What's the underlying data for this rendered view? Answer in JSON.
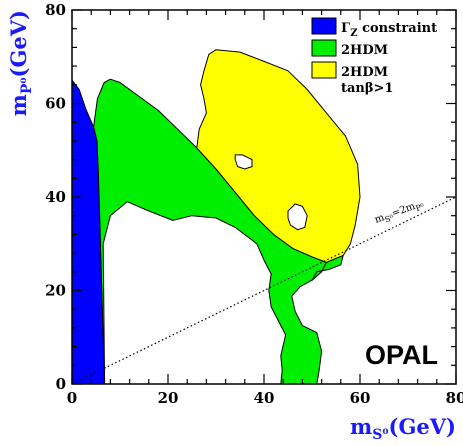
{
  "chart_data": {
    "type": "area",
    "title": "",
    "xlabel": "m",
    "xlabel_sub": "S⁰",
    "xlabel_unit": "(GeV)",
    "ylabel": "m",
    "ylabel_sub": "P⁰",
    "ylabel_unit": "(GeV)",
    "xlim": [
      0,
      80
    ],
    "ylim": [
      0,
      80
    ],
    "xticks": [
      0,
      20,
      40,
      60,
      80
    ],
    "yticks": [
      0,
      20,
      40,
      60,
      80
    ],
    "grid": false,
    "legend_position": "top-right",
    "series": [
      {
        "name": "ΓZ constraint",
        "name_main": "Γ",
        "name_sub": "Z",
        "name_rest": " constraint",
        "color": "#0000ff",
        "points": [
          [
            0,
            65
          ],
          [
            1.5,
            63
          ],
          [
            3,
            58.5
          ],
          [
            4.5,
            55
          ],
          [
            5.2,
            52
          ],
          [
            5.5,
            45
          ],
          [
            5.8,
            35
          ],
          [
            6.2,
            20
          ],
          [
            6.8,
            0
          ],
          [
            0,
            0
          ]
        ]
      },
      {
        "name": "2HDM",
        "color": "#00ee00",
        "points": [
          [
            4.5,
            55
          ],
          [
            5.3,
            61
          ],
          [
            6.7,
            64.5
          ],
          [
            8,
            65.2
          ],
          [
            10,
            64.5
          ],
          [
            14,
            61.5
          ],
          [
            18,
            58.5
          ],
          [
            22,
            54.5
          ],
          [
            26,
            50.5
          ],
          [
            30,
            46
          ],
          [
            34,
            41
          ],
          [
            38,
            36
          ],
          [
            42,
            32
          ],
          [
            46,
            29
          ],
          [
            50,
            27.2
          ],
          [
            53,
            26
          ],
          [
            52,
            24
          ],
          [
            50,
            22.2
          ],
          [
            47.5,
            20.8
          ],
          [
            45.8,
            18.8
          ],
          [
            46.5,
            15.5
          ],
          [
            48,
            12.5
          ],
          [
            51,
            11
          ],
          [
            52,
            7
          ],
          [
            51.5,
            3
          ],
          [
            51,
            0
          ],
          [
            43.5,
            0
          ],
          [
            43.8,
            3
          ],
          [
            43.5,
            6
          ],
          [
            44.5,
            10.5
          ],
          [
            43,
            13.5
          ],
          [
            41.5,
            16.5
          ],
          [
            41,
            20
          ],
          [
            41.5,
            23.5
          ],
          [
            40,
            26.5
          ],
          [
            38.5,
            30
          ],
          [
            34,
            33.5
          ],
          [
            30,
            35.5
          ],
          [
            25,
            36
          ],
          [
            21,
            35
          ],
          [
            16,
            37
          ],
          [
            11.5,
            39
          ],
          [
            8,
            36
          ],
          [
            6.5,
            30
          ],
          [
            6.8,
            0
          ],
          [
            6.2,
            20
          ],
          [
            5.8,
            35
          ],
          [
            5.5,
            45
          ],
          [
            5.2,
            52
          ]
        ]
      },
      {
        "name": "2HDM",
        "name_line2": "tanβ>1",
        "color": "#ffff00",
        "points": [
          [
            26,
            50.5
          ],
          [
            26.5,
            54.5
          ],
          [
            28,
            58
          ],
          [
            27.5,
            61
          ],
          [
            26.8,
            64
          ],
          [
            27.5,
            67
          ],
          [
            28.5,
            70.5
          ],
          [
            30,
            71.5
          ],
          [
            35,
            71
          ],
          [
            40,
            69
          ],
          [
            45,
            67
          ],
          [
            49,
            63
          ],
          [
            53,
            58
          ],
          [
            57,
            53
          ],
          [
            59.5,
            47
          ],
          [
            60,
            40
          ],
          [
            59,
            34
          ],
          [
            58,
            30
          ],
          [
            56.5,
            27.5
          ],
          [
            53,
            26
          ],
          [
            50,
            27.2
          ],
          [
            46,
            29
          ],
          [
            42,
            32
          ],
          [
            38,
            36
          ],
          [
            34,
            41
          ],
          [
            30,
            46
          ]
        ]
      },
      {
        "name": "2HDM",
        "color": "#00ee00",
        "points": [
          [
            53,
            26
          ],
          [
            56.5,
            27.5
          ],
          [
            56,
            25.5
          ],
          [
            53.5,
            24.5
          ],
          [
            51,
            24
          ],
          [
            50,
            22.2
          ],
          [
            52,
            24
          ]
        ]
      }
    ],
    "holes": [
      {
        "points": [
          [
            34,
            49
          ],
          [
            35.5,
            49
          ],
          [
            37.5,
            48
          ],
          [
            37.5,
            46.5
          ],
          [
            36,
            46
          ],
          [
            34.5,
            46.5
          ],
          [
            34,
            48
          ]
        ]
      },
      {
        "points": [
          [
            45,
            37
          ],
          [
            46.5,
            38.5
          ],
          [
            48,
            38
          ],
          [
            49,
            36
          ],
          [
            48.5,
            33.5
          ],
          [
            47,
            33
          ],
          [
            45.5,
            34
          ],
          [
            45,
            35.5
          ]
        ]
      }
    ],
    "diagonal": {
      "label_main": "m",
      "label_sub1": "S⁰",
      "label_eq": "=2m",
      "label_sub2": "P⁰",
      "relation": "mS0 = 2 mP0",
      "x": [
        0,
        80
      ],
      "y": [
        0,
        40
      ]
    },
    "annotation": "OPAL"
  }
}
